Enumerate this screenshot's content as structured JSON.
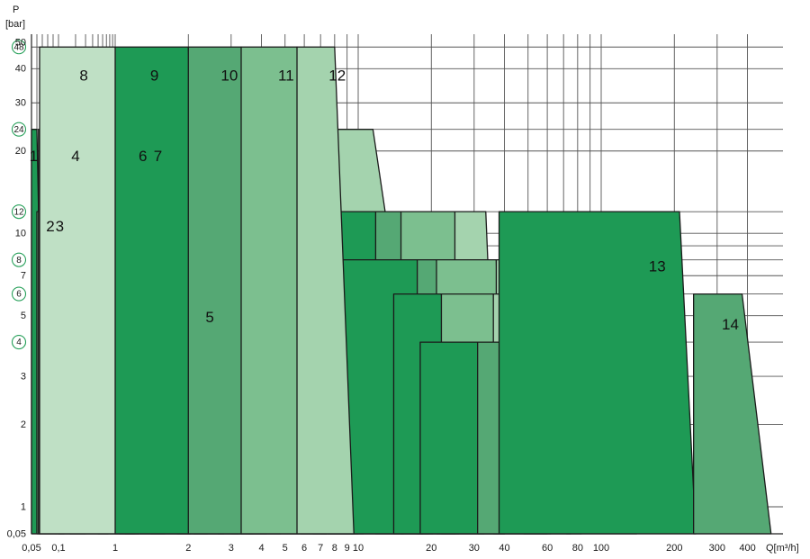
{
  "chart_data": {
    "type": "area",
    "xlabel": "Q[m³/h]",
    "ylabel": "P",
    "ylabel_unit": "[bar]",
    "x_scale": "log",
    "y_scale": "log",
    "xlim": [
      0.05,
      500
    ],
    "ylim": [
      0.05,
      50
    ],
    "grid": true,
    "x_tick_labels": [
      {
        "v": 0.05,
        "t": "0,05"
      },
      {
        "v": 0.1,
        "t": "0,1"
      },
      {
        "v": 1,
        "t": "1"
      },
      {
        "v": 2,
        "t": "2"
      },
      {
        "v": 3,
        "t": "3"
      },
      {
        "v": 4,
        "t": "4"
      },
      {
        "v": 5,
        "t": "5"
      },
      {
        "v": 6,
        "t": "6"
      },
      {
        "v": 7,
        "t": "7"
      },
      {
        "v": 8,
        "t": "8"
      },
      {
        "v": 9,
        "t": "9"
      },
      {
        "v": 10,
        "t": "10"
      },
      {
        "v": 20,
        "t": "20"
      },
      {
        "v": 30,
        "t": "30"
      },
      {
        "v": 40,
        "t": "40"
      },
      {
        "v": 60,
        "t": "60"
      },
      {
        "v": 80,
        "t": "80"
      },
      {
        "v": 100,
        "t": "100"
      },
      {
        "v": 200,
        "t": "200"
      },
      {
        "v": 300,
        "t": "300"
      },
      {
        "v": 400,
        "t": "400"
      }
    ],
    "y_tick_labels": [
      {
        "v": 0.05,
        "t": "0,05",
        "c": false
      },
      {
        "v": 1,
        "t": "1",
        "c": false
      },
      {
        "v": 2,
        "t": "2",
        "c": false
      },
      {
        "v": 3,
        "t": "3",
        "c": false
      },
      {
        "v": 4,
        "t": "4",
        "c": true
      },
      {
        "v": 5,
        "t": "5",
        "c": false
      },
      {
        "v": 6,
        "t": "6",
        "c": true
      },
      {
        "v": 7,
        "t": "7",
        "c": false
      },
      {
        "v": 8,
        "t": "8",
        "c": true
      },
      {
        "v": 10,
        "t": "10",
        "c": false
      },
      {
        "v": 12,
        "t": "12",
        "c": true
      },
      {
        "v": 20,
        "t": "20",
        "c": false
      },
      {
        "v": 24,
        "t": "24",
        "c": true
      },
      {
        "v": 30,
        "t": "30",
        "c": false
      },
      {
        "v": 40,
        "t": "40",
        "c": false
      },
      {
        "v": 48,
        "t": "48",
        "c": true
      },
      {
        "v": 50,
        "t": "50",
        "c": false
      }
    ],
    "colors": {
      "dark": "#1e9a55",
      "medium": "#55a874",
      "mid": "#7cbf8f",
      "light": "#a4d3ae",
      "pale": "#bfe0c5",
      "outline": "#1a1a1a",
      "grid": "#555555",
      "circle": "#27a05a"
    },
    "series": [
      {
        "name": "1",
        "p": 24,
        "x": [
          0.05,
          0.06,
          0.063,
          0.075
        ],
        "shade": "dark",
        "lx": 0.054,
        "ly": 19
      },
      {
        "name": "",
        "p": 12,
        "x": [
          0.06,
          0.075,
          0.078,
          0.095
        ],
        "shade": "mid"
      },
      {
        "name": "2",
        "p": 12,
        "x": [
          0.075,
          0.095,
          0.1,
          0.125
        ],
        "shade": "light",
        "lx": 0.085,
        "ly": 10.5
      },
      {
        "name": "3",
        "p": 12,
        "x": [
          0.095,
          0.125,
          0.13,
          0.165
        ],
        "shade": "mid",
        "lx": 0.105,
        "ly": 10.5
      },
      {
        "name": "4",
        "p": 24,
        "x": [
          0.063,
          0.5,
          0.56,
          0.75
        ],
        "shade": "light",
        "lx": 0.2,
        "ly": 19
      },
      {
        "name": "",
        "p": 6,
        "x": [
          0.1,
          0.16,
          0.175,
          0.3
        ],
        "shade": "mid"
      },
      {
        "name": "",
        "p": 12,
        "x": [
          0.165,
          1,
          1.04,
          1.2
        ],
        "shade": "pale"
      },
      {
        "name": "",
        "p": 6,
        "x": [
          0.16,
          1.8,
          2.25,
          3.2
        ],
        "shade": "light"
      },
      {
        "name": "6",
        "p": 24,
        "x": [
          0.5,
          1.1,
          1.25,
          1.6
        ],
        "shade": "medium",
        "lx": 1.3,
        "ly": 19
      },
      {
        "name": "7",
        "p": 24,
        "x": [
          1.1,
          1.4,
          1.6,
          2.05
        ],
        "shade": "mid",
        "lx": 1.5,
        "ly": 19
      },
      {
        "name": "",
        "p": 24,
        "x": [
          1.4,
          1.8,
          2.1,
          2.8
        ],
        "shade": "pale"
      },
      {
        "name": "",
        "p": 12,
        "x": [
          1.04,
          2.65,
          2.95,
          4.2
        ],
        "shade": "medium"
      },
      {
        "name": "5",
        "p": 6,
        "x": [
          1.8,
          2.25,
          3.2,
          3.7
        ],
        "shade": "dark",
        "lx": 2.45,
        "ly": 4.9
      },
      {
        "name": "",
        "p": 6,
        "x": [
          3,
          3.9,
          6,
          7.4
        ],
        "shade": "medium"
      },
      {
        "name": "",
        "p": 24,
        "x": [
          2.1,
          3.55,
          4.1,
          5.6
        ],
        "shade": "dark"
      },
      {
        "name": "",
        "p": 12,
        "x": [
          2.65,
          6.5,
          6.8,
          7.3
        ],
        "shade": "pale"
      },
      {
        "name": "",
        "p": 24,
        "x": [
          3.55,
          7,
          8,
          10
        ],
        "shade": "medium"
      },
      {
        "name": "",
        "p": 24,
        "x": [
          7,
          11.5,
          15,
          20.3
        ],
        "shade": "light"
      },
      {
        "name": "",
        "p": 6,
        "x": [
          5.8,
          7.5,
          9,
          10.5
        ],
        "shade": "mid"
      },
      {
        "name": "",
        "p": 6,
        "x": [
          7.5,
          14,
          19,
          26
        ],
        "shade": "pale"
      },
      {
        "name": "",
        "p": 12,
        "x": [
          6.5,
          12.2,
          12.8,
          15.4
        ],
        "shade": "dark"
      },
      {
        "name": "",
        "p": 12,
        "x": [
          11.8,
          15,
          16,
          18.5
        ],
        "shade": "medium"
      },
      {
        "name": "",
        "p": 12,
        "x": [
          15,
          25,
          28,
          33
        ],
        "shade": "mid"
      },
      {
        "name": "",
        "p": 12,
        "x": [
          25,
          33.5,
          34,
          38
        ],
        "shade": "light"
      },
      {
        "name": "",
        "p": 8,
        "x": [
          7.3,
          17.5,
          18,
          19.5
        ],
        "shade": "dark"
      },
      {
        "name": "",
        "p": 8,
        "x": [
          17.5,
          21,
          21.5,
          25
        ],
        "shade": "medium"
      },
      {
        "name": "",
        "p": 8,
        "x": [
          21,
          37,
          38,
          40
        ],
        "shade": "mid"
      },
      {
        "name": "",
        "p": 8,
        "x": [
          37,
          55,
          56,
          58
        ],
        "shade": "light"
      },
      {
        "name": "",
        "p": 6,
        "x": [
          14,
          22,
          23,
          25
        ],
        "shade": "dark"
      },
      {
        "name": "",
        "p": 6,
        "x": [
          22,
          36,
          37,
          40
        ],
        "shade": "mid"
      },
      {
        "name": "",
        "p": 6,
        "x": [
          36,
          58,
          60,
          62
        ],
        "shade": "light"
      },
      {
        "name": "",
        "p": 6,
        "x": [
          58,
          70,
          72,
          75
        ],
        "shade": "mid"
      },
      {
        "name": "",
        "p": 4,
        "x": [
          18,
          31,
          35,
          37
        ],
        "shade": "dark"
      },
      {
        "name": "",
        "p": 4,
        "x": [
          31,
          48,
          56,
          60
        ],
        "shade": "medium"
      },
      {
        "name": "",
        "p": 4,
        "x": [
          48,
          72,
          80,
          83
        ],
        "shade": "mid"
      },
      {
        "name": "",
        "p": 4,
        "x": [
          72,
          105,
          130,
          140
        ],
        "shade": "pale"
      },
      {
        "name": "13",
        "p": 12,
        "x": [
          38,
          210,
          235,
          245
        ],
        "shade": "dark",
        "lx": 170,
        "ly": 7.5
      },
      {
        "name": "14",
        "p": 6,
        "x": [
          240,
          380,
          450,
          500
        ],
        "shade": "medium",
        "lx": 340,
        "ly": 4.6
      },
      {
        "name": "8",
        "p": 48,
        "x": [
          0.065,
          1,
          1.04,
          1.25
        ],
        "shade": "pale",
        "lx": 0.28,
        "ly": 37.5
      },
      {
        "name": "9",
        "p": 48,
        "x": [
          1,
          2,
          2.1,
          2.4
        ],
        "shade": "dark",
        "lx": 1.45,
        "ly": 37.5
      },
      {
        "name": "10",
        "p": 48,
        "x": [
          2,
          3.3,
          3.8,
          4.8
        ],
        "shade": "medium",
        "lx": 2.95,
        "ly": 37.5
      },
      {
        "name": "11",
        "p": 48,
        "x": [
          3.3,
          5.6,
          6.2,
          7.4
        ],
        "shade": "mid",
        "lx": 5.05,
        "ly": 37.5
      },
      {
        "name": "12",
        "p": 48,
        "x": [
          5.6,
          8,
          8.6,
          9.6
        ],
        "shade": "light",
        "lx": 8.2,
        "ly": 37.5
      }
    ]
  }
}
